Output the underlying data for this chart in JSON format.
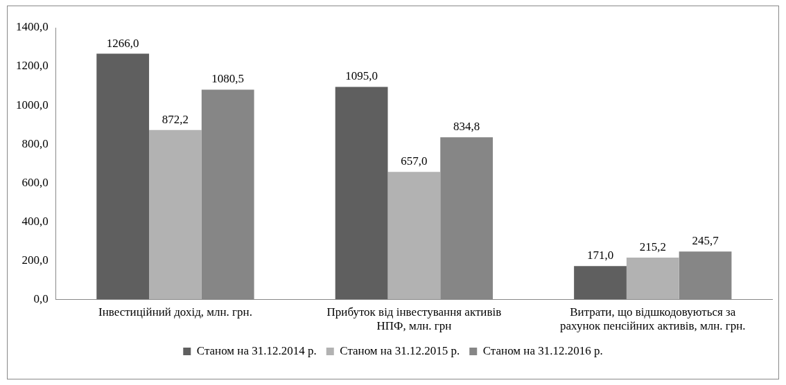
{
  "chart_data": {
    "type": "bar",
    "categories": [
      "Інвестиційний дохід, млн. грн.",
      "Прибуток від інвестування активів НПФ, млн. грн",
      "Витрати, що відшкодовуються за рахунок пенсійних активів, млн. грн."
    ],
    "series": [
      {
        "name": "Станом на 31.12.2014 р.",
        "color": "#5f5f5f",
        "values": [
          1266.0,
          1095.0,
          171.0
        ],
        "value_labels": [
          "1266,0",
          "1095,0",
          "171,0"
        ]
      },
      {
        "name": "Станом на 31.12.2015 р.",
        "color": "#b2b2b2",
        "values": [
          872.2,
          657.0,
          215.2
        ],
        "value_labels": [
          "872,2",
          "657,0",
          "215,2"
        ]
      },
      {
        "name": "Станом на 31.12.2016 р.",
        "color": "#868686",
        "values": [
          1080.5,
          834.8,
          245.7
        ],
        "value_labels": [
          "1080,5",
          "834,8",
          "245,7"
        ]
      }
    ],
    "ylim": [
      0,
      1400
    ],
    "yticks": [
      {
        "value": 0,
        "label": "0,0"
      },
      {
        "value": 200,
        "label": "200,0"
      },
      {
        "value": 400,
        "label": "400,0"
      },
      {
        "value": 600,
        "label": "600,0"
      },
      {
        "value": 800,
        "label": "800,0"
      },
      {
        "value": 1000,
        "label": "1000,0"
      },
      {
        "value": 1200,
        "label": "1200,0"
      },
      {
        "value": 1400,
        "label": "1400,0"
      }
    ],
    "legend": "bottom"
  }
}
